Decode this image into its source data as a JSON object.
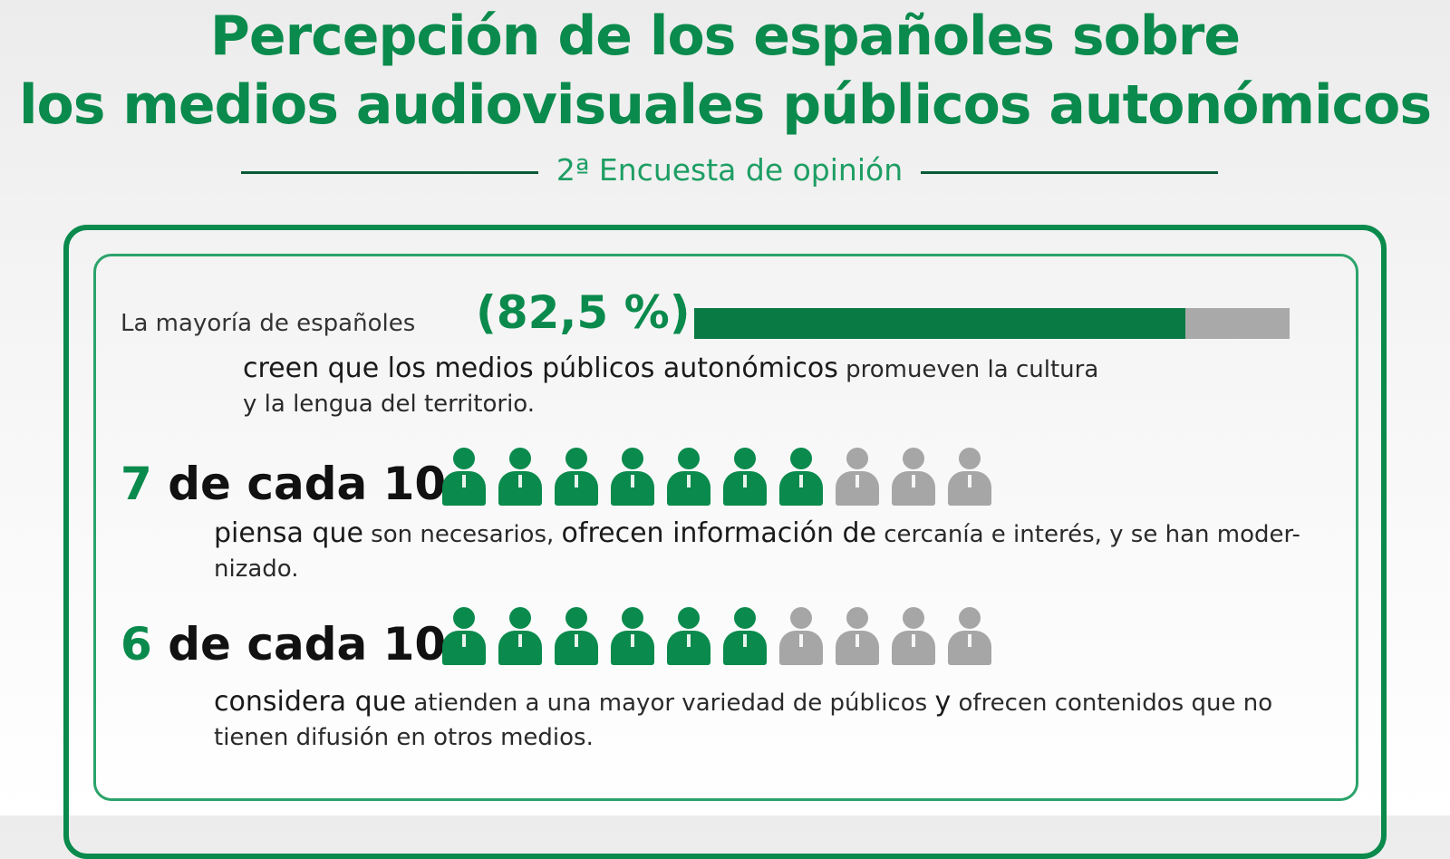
{
  "header": {
    "title_line1": "Percepción de los españoles sobre",
    "title_line2": "los medios audiovisuales públicos autonómicos",
    "subtitle": "2ª Encuesta de opinión"
  },
  "stat_bar": {
    "lead": "La mayoría de españoles",
    "value_label": "(82,5 %)",
    "desc_em": "creen que los medios públicos autonómicos",
    "desc_rest": " promueven la cultura",
    "desc_line2": "y la lengua del territorio."
  },
  "stat_seven": {
    "num": "7",
    "text": " de cada 10",
    "desc_em1": "piensa que",
    "desc_t1": " son necesarios, ",
    "desc_em2": "ofrecen información de",
    "desc_t2": " cercanía e interés, y se han moder-",
    "desc_line2": "nizado."
  },
  "stat_six": {
    "num": "6",
    "text": " de cada 10",
    "desc_em1": "considera que",
    "desc_t1": " atienden a una mayor variedad de públicos ",
    "desc_em2": "y",
    "desc_t2": " ofrecen contenidos que no",
    "desc_line2": "tienen difusión en otros medios."
  },
  "colors": {
    "accent": "#0a8a4c",
    "bar_fill": "#0a7a44",
    "inactive": "#a6a6a6"
  },
  "chart_data": [
    {
      "type": "bar",
      "categories": [
        "creen que los medios públicos autonómicos promueven la cultura y la lengua del territorio"
      ],
      "values": [
        82.5
      ],
      "ylim": [
        0,
        100
      ],
      "unit": "%"
    },
    {
      "type": "pictogram",
      "filled": 7,
      "total": 10
    },
    {
      "type": "pictogram",
      "filled": 6,
      "total": 10
    }
  ]
}
